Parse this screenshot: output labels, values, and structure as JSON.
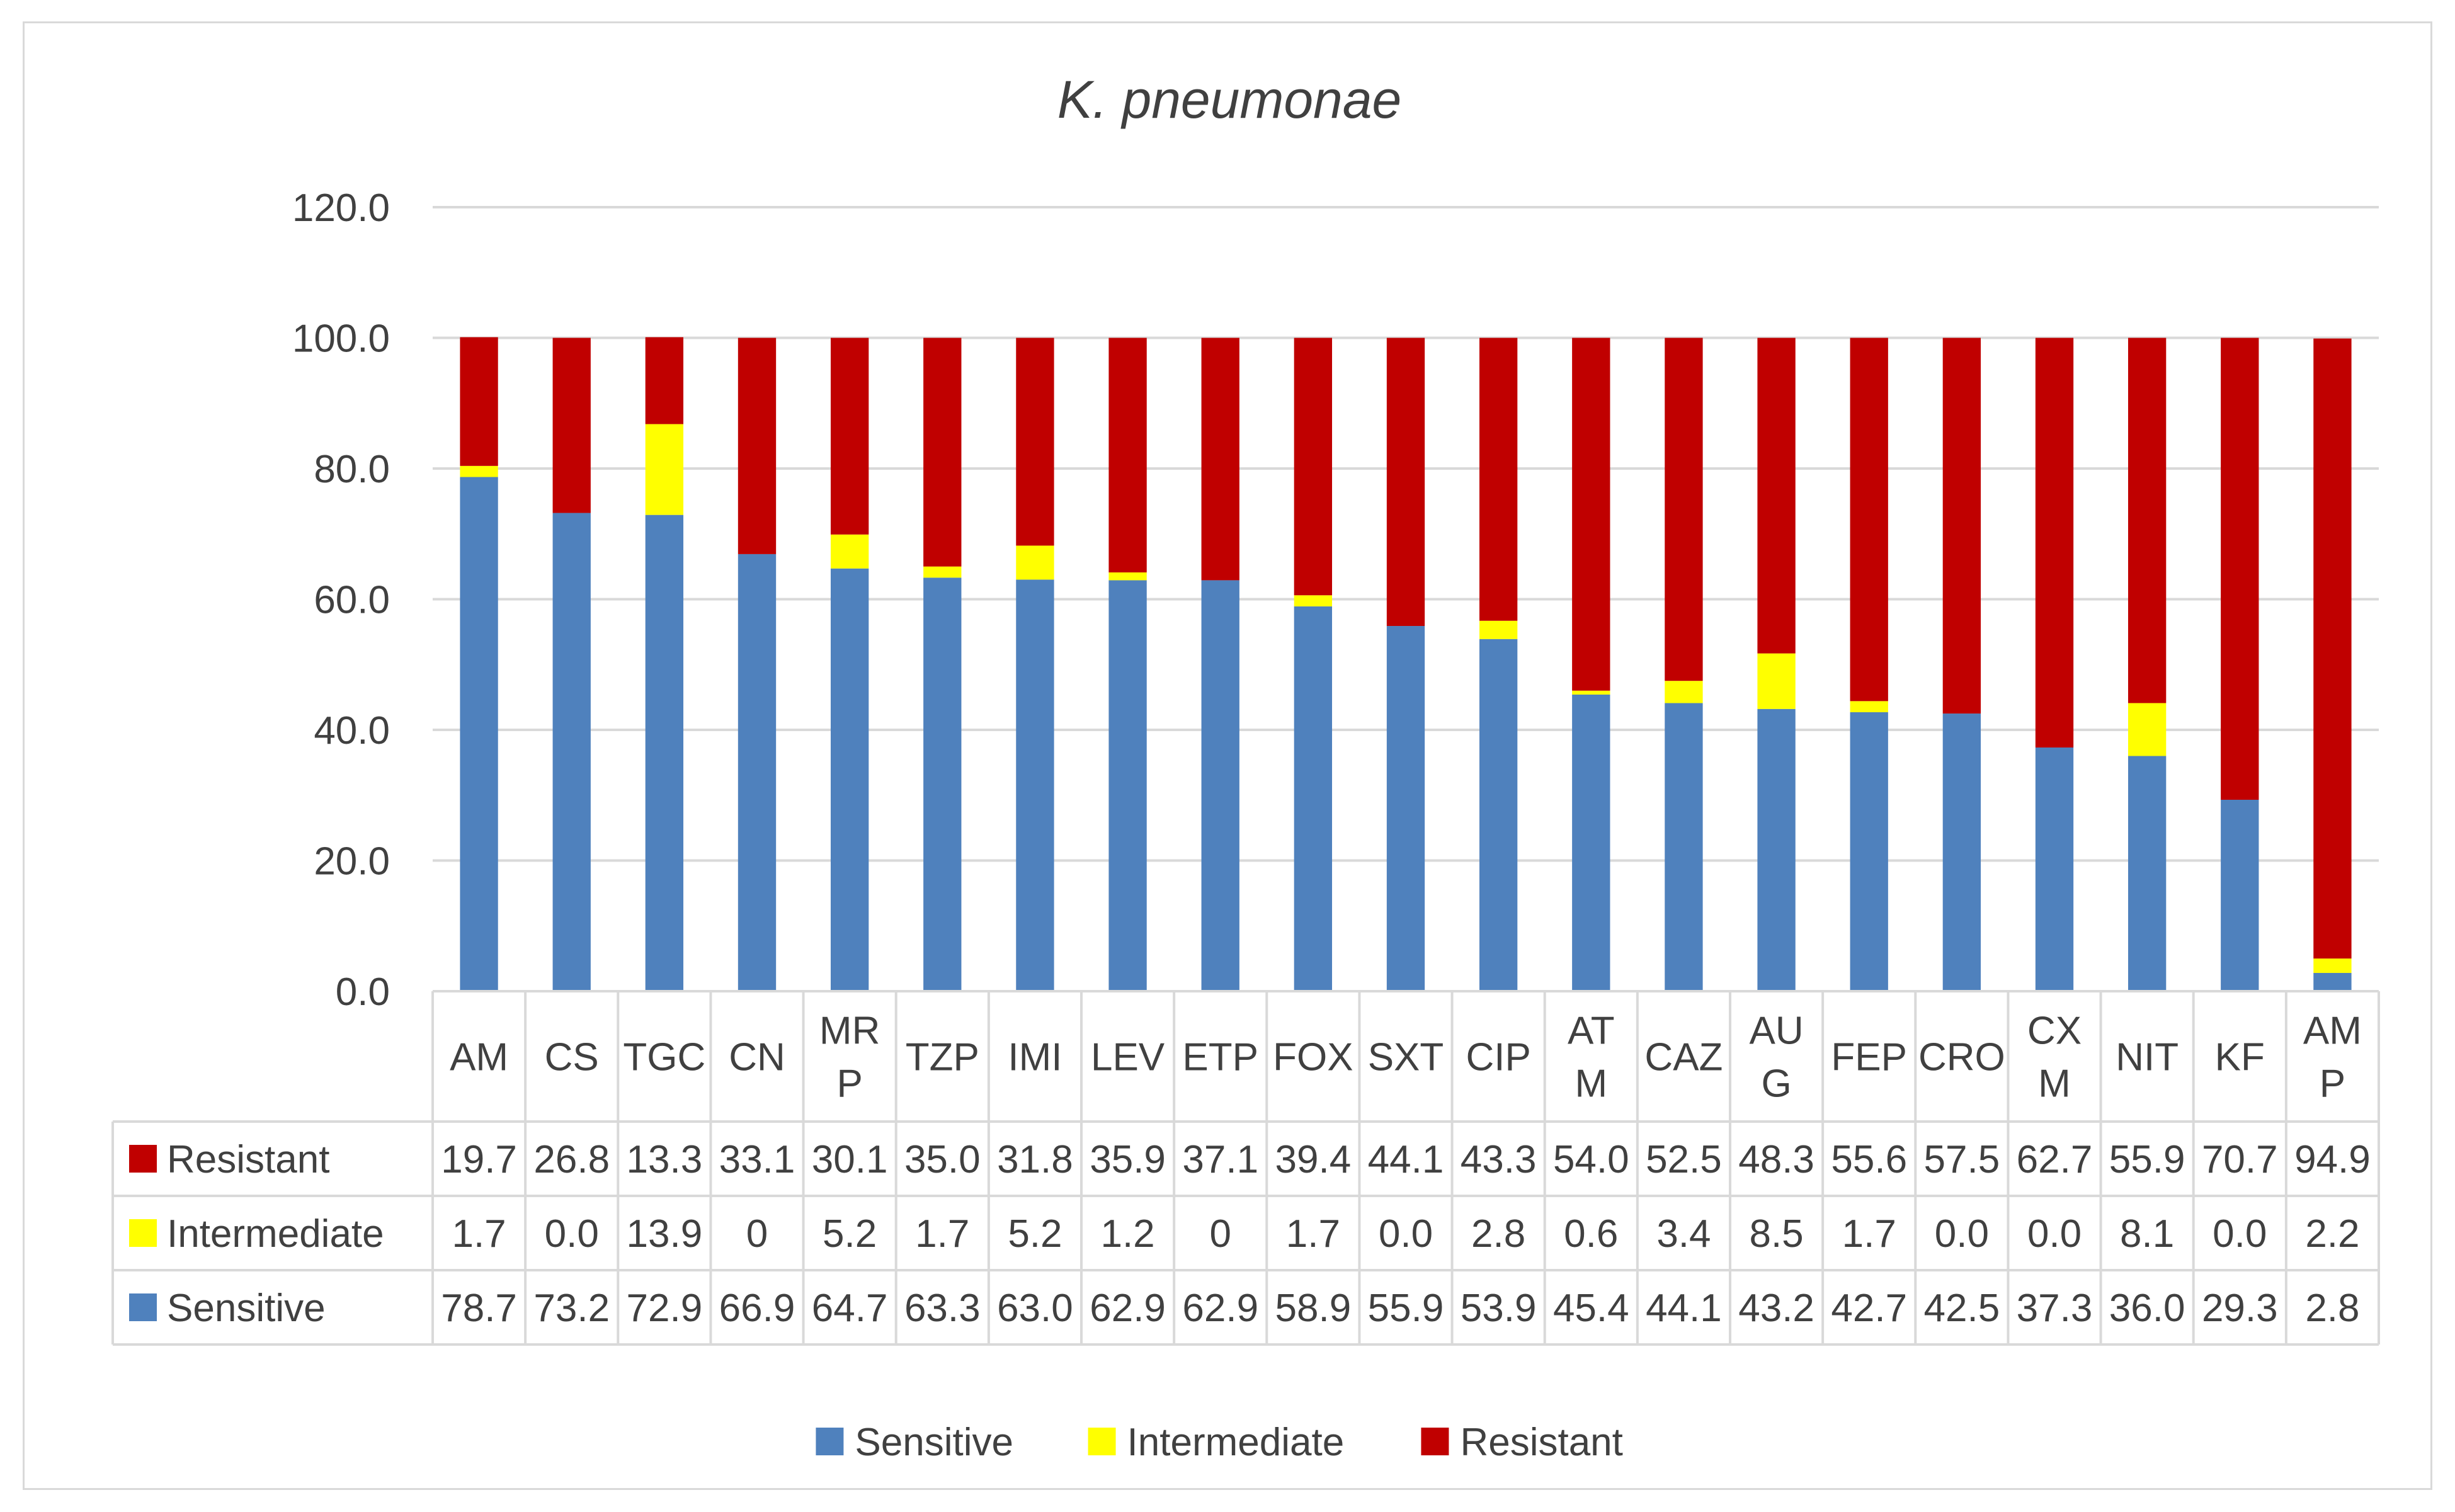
{
  "colors": {
    "sensitive": "#4f81bd",
    "intermediate": "#ffff00",
    "resistant": "#c00000",
    "gridline": "#d9d9d9",
    "text": "#404040"
  },
  "chart_data": {
    "type": "bar",
    "stacked": true,
    "title": "K. pneumonae",
    "xlabel": "",
    "ylabel": "",
    "ylim": [
      0,
      120
    ],
    "yticks": [
      "0.0",
      "20.0",
      "40.0",
      "60.0",
      "80.0",
      "100.0",
      "120.0"
    ],
    "grid": true,
    "legend_position": "bottom",
    "categories": [
      [
        "AM"
      ],
      [
        "CS"
      ],
      [
        "TGC"
      ],
      [
        "CN"
      ],
      [
        "MR",
        "P"
      ],
      [
        "TZP"
      ],
      [
        "IMI"
      ],
      [
        "LEV"
      ],
      [
        "ETP"
      ],
      [
        "FOX"
      ],
      [
        "SXT"
      ],
      [
        "CIP"
      ],
      [
        "AT",
        "M"
      ],
      [
        "CAZ"
      ],
      [
        "AU",
        "G"
      ],
      [
        "FEP"
      ],
      [
        "CRO"
      ],
      [
        "CX",
        "M"
      ],
      [
        "NIT"
      ],
      [
        "KF"
      ],
      [
        "AM",
        "P"
      ]
    ],
    "series": [
      {
        "name": "Resistant",
        "color_key": "resistant",
        "values": [
          19.7,
          26.8,
          13.3,
          33.1,
          30.1,
          35.0,
          31.8,
          35.9,
          37.1,
          39.4,
          44.1,
          43.3,
          54.0,
          52.5,
          48.3,
          55.6,
          57.5,
          62.7,
          55.9,
          70.7,
          94.9
        ],
        "labels": [
          "19.7",
          "26.8",
          "13.3",
          "33.1",
          "30.1",
          "35.0",
          "31.8",
          "35.9",
          "37.1",
          "39.4",
          "44.1",
          "43.3",
          "54.0",
          "52.5",
          "48.3",
          "55.6",
          "57.5",
          "62.7",
          "55.9",
          "70.7",
          "94.9"
        ]
      },
      {
        "name": "Intermediate",
        "color_key": "intermediate",
        "values": [
          1.7,
          0.0,
          13.9,
          0,
          5.2,
          1.7,
          5.2,
          1.2,
          0,
          1.7,
          0.0,
          2.8,
          0.6,
          3.4,
          8.5,
          1.7,
          0.0,
          0.0,
          8.1,
          0.0,
          2.2
        ],
        "labels": [
          "1.7",
          "0.0",
          "13.9",
          "0",
          "5.2",
          "1.7",
          "5.2",
          "1.2",
          "0",
          "1.7",
          "0.0",
          "2.8",
          "0.6",
          "3.4",
          "8.5",
          "1.7",
          "0.0",
          "0.0",
          "8.1",
          "0.0",
          "2.2"
        ]
      },
      {
        "name": "Sensitive",
        "color_key": "sensitive",
        "values": [
          78.7,
          73.2,
          72.9,
          66.9,
          64.7,
          63.3,
          63.0,
          62.9,
          62.9,
          58.9,
          55.9,
          53.9,
          45.4,
          44.1,
          43.2,
          42.7,
          42.5,
          37.3,
          36.0,
          29.3,
          2.8
        ],
        "labels": [
          "78.7",
          "73.2",
          "72.9",
          "66.9",
          "64.7",
          "63.3",
          "63.0",
          "62.9",
          "62.9",
          "58.9",
          "55.9",
          "53.9",
          "45.4",
          "44.1",
          "43.2",
          "42.7",
          "42.5",
          "37.3",
          "36.0",
          "29.3",
          "2.8"
        ]
      }
    ],
    "stack_order": [
      "Sensitive",
      "Intermediate",
      "Resistant"
    ],
    "legend": [
      "Sensitive",
      "Intermediate",
      "Resistant"
    ]
  }
}
